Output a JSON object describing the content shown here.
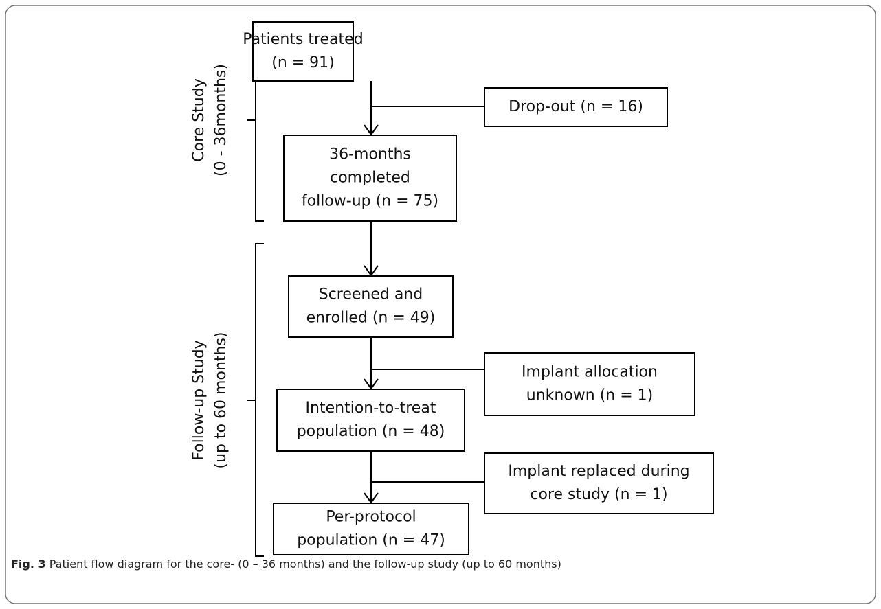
{
  "groups": [
    {
      "lines": [
        "Core Study",
        "(0 - 36months)"
      ]
    },
    {
      "lines": [
        "Follow-up Study",
        "(up to 60 months)"
      ]
    }
  ],
  "nodes": [
    {
      "lines": [
        "Patients treated",
        "(n = 91)"
      ]
    },
    {
      "lines": [
        "Drop-out (n = 16)"
      ]
    },
    {
      "lines": [
        "36-months",
        "completed",
        "follow-up (n = 75)"
      ]
    },
    {
      "lines": [
        "Screened and",
        "enrolled (n = 49)"
      ]
    },
    {
      "lines": [
        "Implant allocation",
        "unknown (n = 1)"
      ]
    },
    {
      "lines": [
        "Intention-to-treat",
        "population (n = 48)"
      ]
    },
    {
      "lines": [
        "Implant replaced during",
        "core study (n = 1)"
      ]
    },
    {
      "lines": [
        "Per-protocol",
        "population (n = 47)"
      ]
    }
  ],
  "caption": {
    "label": "Fig. 3",
    "text": "Patient flow diagram for the core- (0 – 36 months) and the follow-up study (up to 60 months)"
  }
}
